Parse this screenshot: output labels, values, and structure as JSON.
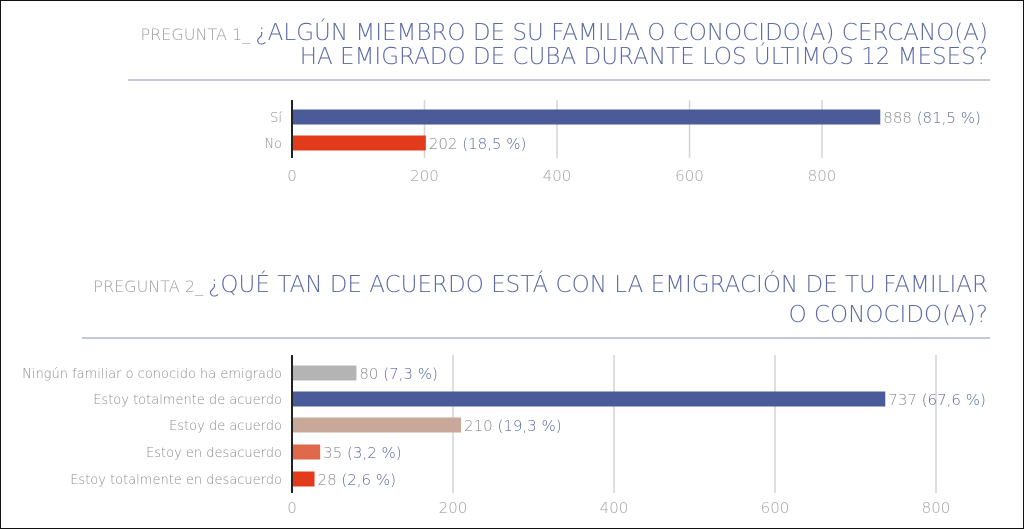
{
  "chart_data": [
    {
      "type": "bar",
      "orientation": "horizontal",
      "title_prefix": "PREGUNTA 1_",
      "title_lines": [
        "¿ALGÚN MIEMBRO DE SU FAMILIA O CONOCIDO(A) CERCANO(A)",
        "HA EMIGRADO DE CUBA DURANTE LOS ÚLTIMOS 12 MESES?"
      ],
      "categories": [
        "Sí",
        "No"
      ],
      "values": [
        888,
        202
      ],
      "data_labels": [
        "888 (81,5 %)",
        "202 (18,5 %)"
      ],
      "colors": [
        "#4b5a98",
        "#e23b1c"
      ],
      "xlim": [
        0,
        900
      ],
      "xticks": [
        0,
        200,
        400,
        600,
        800
      ],
      "grid": true
    },
    {
      "type": "bar",
      "orientation": "horizontal",
      "title_prefix": "PREGUNTA 2_",
      "title_lines": [
        "¿QUÉ TAN DE ACUERDO ESTÁ CON LA EMIGRACIÓN DE TU FAMILIAR",
        "O CONOCIDO(A)?"
      ],
      "categories": [
        "Ningún familiar o conocido ha emigrado",
        "Estoy totalmente de acuerdo",
        "Estoy de acuerdo",
        "Estoy en desacuerdo",
        "Estoy totalmente en desacuerdo"
      ],
      "values": [
        80,
        737,
        210,
        35,
        28
      ],
      "data_labels": [
        "80 (7,3 %)",
        "737 (67,6 %)",
        "210 (19,3 %)",
        "35 (3,2 %)",
        "28 (2,6 %)"
      ],
      "colors": [
        "#b4b4b4",
        "#4b5a98",
        "#c8a899",
        "#e0694b",
        "#e23b1c"
      ],
      "xlim": [
        0,
        850
      ],
      "xticks": [
        0,
        200,
        400,
        600,
        800
      ],
      "grid": true
    }
  ],
  "colors": {
    "title": "#5a68a3",
    "prefix": "#9a9a9a",
    "rule": "#c5c8dc",
    "label": "#8a8a8a",
    "value": "#5a68a3"
  }
}
